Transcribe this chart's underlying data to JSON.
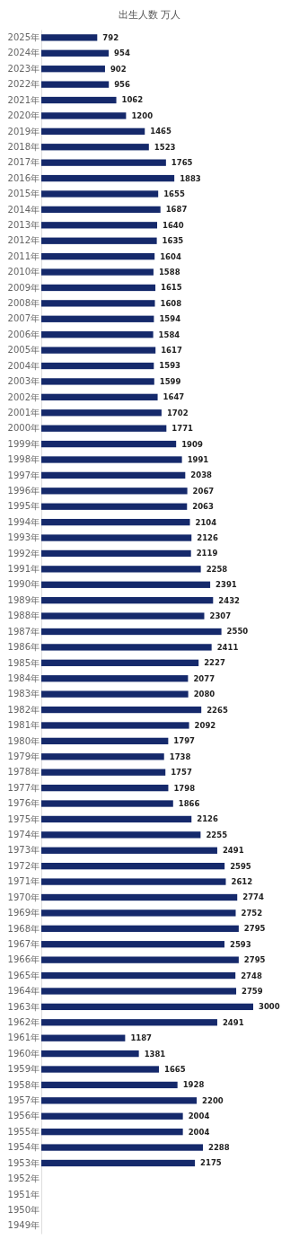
{
  "chart_data": {
    "type": "bar",
    "orientation": "horizontal",
    "title": "出生人数 万人",
    "categories": [
      "2025年",
      "2024年",
      "2023年",
      "2022年",
      "2021年",
      "2020年",
      "2019年",
      "2018年",
      "2017年",
      "2016年",
      "2015年",
      "2014年",
      "2013年",
      "2012年",
      "2011年",
      "2010年",
      "2009年",
      "2008年",
      "2007年",
      "2006年",
      "2005年",
      "2004年",
      "2003年",
      "2002年",
      "2001年",
      "2000年",
      "1999年",
      "1998年",
      "1997年",
      "1996年",
      "1995年",
      "1994年",
      "1993年",
      "1992年",
      "1991年",
      "1990年",
      "1989年",
      "1988年",
      "1987年",
      "1986年",
      "1985年",
      "1984年",
      "1983年",
      "1982年",
      "1981年",
      "1980年",
      "1979年",
      "1978年",
      "1977年",
      "1976年",
      "1975年",
      "1974年",
      "1973年",
      "1972年",
      "1971年",
      "1970年",
      "1969年",
      "1968年",
      "1967年",
      "1966年",
      "1965年",
      "1964年",
      "1963年",
      "1962年",
      "1961年",
      "1960年",
      "1959年",
      "1958年",
      "1957年",
      "1956年",
      "1955年",
      "1954年",
      "1953年",
      "1952年",
      "1951年",
      "1950年",
      "1949年"
    ],
    "values": [
      792,
      954,
      902,
      956,
      1062,
      1200,
      1465,
      1523,
      1765,
      1883,
      1655,
      1687,
      1640,
      1635,
      1604,
      1588,
      1615,
      1608,
      1594,
      1584,
      1617,
      1593,
      1599,
      1647,
      1702,
      1771,
      1909,
      1991,
      2038,
      2067,
      2063,
      2104,
      2126,
      2119,
      2258,
      2391,
      2432,
      2307,
      2550,
      2411,
      2227,
      2077,
      2080,
      2265,
      2092,
      1797,
      1738,
      1757,
      1798,
      1866,
      2126,
      2255,
      2491,
      2595,
      2612,
      2774,
      2752,
      2795,
      2593,
      2795,
      2748,
      2759,
      3000,
      2491,
      1187,
      1381,
      1665,
      1928,
      2200,
      2004,
      2004,
      2288,
      2175,
      null,
      null,
      null,
      null
    ],
    "color": "#15296b",
    "data_labels": true,
    "tick_labels": "y"
  }
}
